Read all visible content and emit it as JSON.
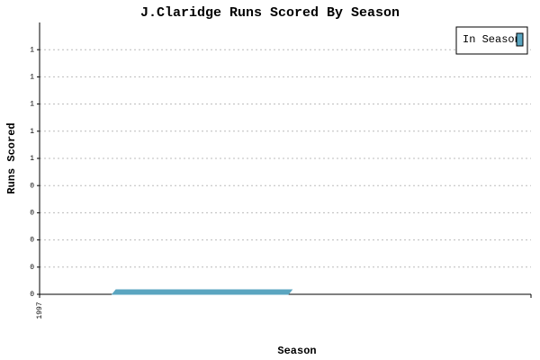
{
  "chart_data": {
    "type": "bar",
    "title": "J.Claridge Runs Scored By Season",
    "x_label": "Season",
    "y_label": "Runs Scored",
    "categories": [
      "1997"
    ],
    "series": [
      {
        "name": "In Season",
        "color": "#5aa5c0",
        "values": [
          0
        ]
      }
    ],
    "ylim": [
      0,
      1
    ],
    "yticks": [
      0,
      {
        "value": 0.1,
        "label": "0"
      },
      {
        "value": 0.2,
        "label": "0"
      },
      {
        "value": 0.3,
        "label": "0"
      },
      {
        "value": 0.4,
        "label": "0"
      },
      {
        "value": 0.5,
        "label": "1"
      },
      {
        "value": 0.6,
        "label": "1"
      },
      {
        "value": 0.7,
        "label": "1"
      },
      {
        "value": 0.8,
        "label": "1"
      },
      {
        "value": 0.9,
        "label": "1"
      }
    ],
    "grid": true,
    "legend": "top-right"
  }
}
